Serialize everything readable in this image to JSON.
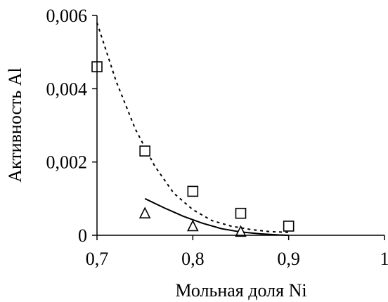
{
  "chart_data": {
    "type": "scatter",
    "title": "",
    "xlabel": "Мольная доля Ni",
    "ylabel": "Активность Al",
    "xlim": [
      0.7,
      1.0
    ],
    "ylim": [
      0,
      0.006
    ],
    "x_ticks": [
      0.7,
      0.8,
      0.9,
      1.0
    ],
    "x_tick_labels": [
      "0,7",
      "0,8",
      "0,9",
      "1"
    ],
    "y_ticks": [
      0,
      0.002,
      0.004,
      0.006
    ],
    "y_tick_labels": [
      "0",
      "0,002",
      "0,004",
      "0,006"
    ],
    "grid": false,
    "legend": "none",
    "series": [
      {
        "marker": "square",
        "x": [
          0.7,
          0.75,
          0.8,
          0.85,
          0.9
        ],
        "y": [
          0.0046,
          0.0023,
          0.0012,
          0.0006,
          0.00025
        ]
      },
      {
        "marker": "triangle",
        "x": [
          0.75,
          0.8,
          0.85
        ],
        "y": [
          0.0006,
          0.00025,
          0.0001
        ]
      }
    ],
    "curves": [
      {
        "style": "dotted",
        "x": [
          0.7,
          0.72,
          0.74,
          0.76,
          0.78,
          0.8,
          0.82,
          0.84,
          0.86,
          0.88,
          0.9
        ],
        "y": [
          0.0058,
          0.0042,
          0.0029,
          0.0019,
          0.00115,
          0.0007,
          0.0004,
          0.00025,
          0.00016,
          0.0001,
          8e-05
        ]
      },
      {
        "style": "solid",
        "x": [
          0.75,
          0.77,
          0.79,
          0.81,
          0.83,
          0.85,
          0.87,
          0.89,
          0.9
        ],
        "y": [
          0.001,
          0.00075,
          0.00052,
          0.00033,
          0.00018,
          9e-05,
          4e-05,
          1e-05,
          0.0
        ]
      }
    ]
  }
}
